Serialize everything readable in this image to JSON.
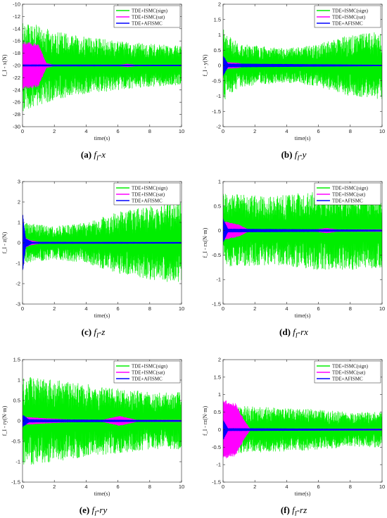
{
  "legend": {
    "entries": [
      "TDE+ISMC(sign)",
      "TDE+ISMC(sat)",
      "TDE+AFISMC"
    ],
    "colors": [
      "#00ee00",
      "#ff00ff",
      "#0000ff"
    ]
  },
  "chart_data": [
    {
      "type": "line",
      "label": "(a)",
      "caption": "f_I-x",
      "caption_sub": "I",
      "caption_pre": "f",
      "caption_post": "-x",
      "ylabel": "f_I - x(N)",
      "xlabel": "time(s)",
      "xlim": [
        0,
        10
      ],
      "ylim": [
        -30,
        -10
      ],
      "xticks": [
        0,
        2,
        4,
        6,
        8,
        10
      ],
      "yticks": [
        -30,
        -28,
        -26,
        -24,
        -22,
        -20,
        -18,
        -16,
        -14,
        -12,
        -10
      ],
      "ytick_labels": [
        "-30",
        "-28",
        "-26",
        "-24",
        "-22",
        "-20",
        "-18",
        "-16",
        "-14",
        "-12",
        "-10"
      ],
      "legend_position": "top-right",
      "series": [
        {
          "name": "TDE+ISMC(sign)",
          "center": -20,
          "envelope": [
            [
              0,
              7.5
            ],
            [
              1,
              6.5
            ],
            [
              3,
              5.0
            ],
            [
              6,
              4.0
            ],
            [
              8,
              3.5
            ],
            [
              10,
              3.2
            ]
          ]
        },
        {
          "name": "TDE+ISMC(sat)",
          "center": -20,
          "envelope": [
            [
              0,
              4.0
            ],
            [
              1.0,
              3.5
            ],
            [
              1.5,
              0.4
            ],
            [
              2.0,
              0.05
            ],
            [
              6.0,
              0.05
            ],
            [
              6.6,
              0.25
            ],
            [
              7.2,
              0.05
            ],
            [
              10,
              0.05
            ]
          ]
        },
        {
          "name": "TDE+AFISMC",
          "center": -20,
          "envelope": [
            [
              0,
              0.1
            ],
            [
              10,
              0.05
            ]
          ]
        }
      ]
    },
    {
      "type": "line",
      "label": "(b)",
      "caption": "f_I-y",
      "caption_sub": "I",
      "caption_pre": "f",
      "caption_post": "-y",
      "ylabel": "f_I - y(N)",
      "xlabel": "time(s)",
      "xlim": [
        0,
        10
      ],
      "ylim": [
        -2,
        2
      ],
      "xticks": [
        0,
        2,
        4,
        6,
        8,
        10
      ],
      "yticks": [
        -2,
        -1.5,
        -1,
        -0.5,
        0,
        0.5,
        1,
        1.5,
        2
      ],
      "ytick_labels": [
        "-2",
        "-1.5",
        "-1",
        "-0.5",
        "0",
        "0.5",
        "1",
        "1.5",
        "2"
      ],
      "legend_position": "top-right",
      "series": [
        {
          "name": "TDE+ISMC(sign)",
          "center": 0,
          "envelope": [
            [
              0,
              1.2
            ],
            [
              1,
              0.7
            ],
            [
              4,
              0.55
            ],
            [
              6,
              0.7
            ],
            [
              8,
              1.0
            ],
            [
              10,
              1.1
            ]
          ]
        },
        {
          "name": "TDE+ISMC(sat)",
          "center": 0,
          "envelope": [
            [
              0,
              0.12
            ],
            [
              1.0,
              0.08
            ],
            [
              1.4,
              0.01
            ],
            [
              10,
              0.01
            ]
          ]
        },
        {
          "name": "TDE+AFISMC",
          "center": 0,
          "envelope": [
            [
              0,
              0.35
            ],
            [
              0.3,
              0.05
            ],
            [
              10,
              0.01
            ]
          ]
        }
      ]
    },
    {
      "type": "line",
      "label": "(c)",
      "caption": "f_I-z",
      "caption_sub": "I",
      "caption_pre": "f",
      "caption_post": "-z",
      "ylabel": "f_I - z(N)",
      "xlabel": "time(s)",
      "xlim": [
        0,
        10
      ],
      "ylim": [
        -3,
        3
      ],
      "xticks": [
        0,
        2,
        4,
        6,
        8,
        10
      ],
      "yticks": [
        -3,
        -2,
        -1,
        0,
        1,
        2,
        3
      ],
      "ytick_labels": [
        "-3",
        "-2",
        "-1",
        "0",
        "1",
        "2",
        "3"
      ],
      "legend_position": "top-right",
      "series": [
        {
          "name": "TDE+ISMC(sign)",
          "center": 0,
          "envelope": [
            [
              0,
              1.0
            ],
            [
              2,
              0.8
            ],
            [
              4,
              1.0
            ],
            [
              6,
              1.5
            ],
            [
              8,
              1.8
            ],
            [
              10,
              2.0
            ]
          ]
        },
        {
          "name": "TDE+ISMC(sat)",
          "center": 0,
          "envelope": [
            [
              0,
              0.3
            ],
            [
              0.5,
              0.12
            ],
            [
              1.2,
              0.02
            ],
            [
              10,
              0.02
            ]
          ]
        },
        {
          "name": "TDE+AFISMC",
          "center": 0,
          "envelope": [
            [
              0,
              1.5
            ],
            [
              0.2,
              0.2
            ],
            [
              0.6,
              0.03
            ],
            [
              10,
              0.02
            ]
          ]
        }
      ]
    },
    {
      "type": "line",
      "label": "(d)",
      "caption": "f_I-rx",
      "caption_sub": "I",
      "caption_pre": "f",
      "caption_post": "-rx",
      "ylabel": "f_I - rx(N·m)",
      "xlabel": "time(s)",
      "xlim": [
        0,
        10
      ],
      "ylim": [
        -1.5,
        1
      ],
      "xticks": [
        0,
        2,
        4,
        6,
        8,
        10
      ],
      "yticks": [
        -1.5,
        -1,
        -0.5,
        0,
        0.5,
        1
      ],
      "ytick_labels": [
        "-1.5",
        "-1",
        "-0.5",
        "0",
        "0.5",
        "1"
      ],
      "legend_position": "top-right",
      "series": [
        {
          "name": "TDE+ISMC(sign)",
          "center": 0,
          "envelope": [
            [
              0,
              0.75
            ],
            [
              3,
              0.7
            ],
            [
              6,
              0.8
            ],
            [
              8,
              0.8
            ],
            [
              10,
              0.75
            ]
          ]
        },
        {
          "name": "TDE+ISMC(sat)",
          "center": 0,
          "envelope": [
            [
              0,
              0.2
            ],
            [
              1.0,
              0.12
            ],
            [
              1.6,
              0.02
            ],
            [
              5.8,
              0.02
            ],
            [
              6.5,
              0.05
            ],
            [
              7.2,
              0.02
            ],
            [
              10,
              0.02
            ]
          ]
        },
        {
          "name": "TDE+AFISMC",
          "center": 0,
          "envelope": [
            [
              0,
              0.25
            ],
            [
              0.3,
              0.03
            ],
            [
              10,
              0.01
            ]
          ]
        }
      ]
    },
    {
      "type": "line",
      "label": "(e)",
      "caption": "f_I-ry",
      "caption_sub": "I",
      "caption_pre": "f",
      "caption_post": "-ry",
      "ylabel": "f_I - ry(N·m)",
      "xlabel": "time(s)",
      "xlim": [
        0,
        10
      ],
      "ylim": [
        -1.5,
        1.5
      ],
      "xticks": [
        0,
        2,
        4,
        6,
        8,
        10
      ],
      "yticks": [
        -1.5,
        -1,
        -0.5,
        0,
        0.5,
        1,
        1.5
      ],
      "ytick_labels": [
        "-1.5",
        "-1",
        "-0.5",
        "0",
        "0.5",
        "1",
        "1.5"
      ],
      "legend_position": "top-right",
      "series": [
        {
          "name": "TDE+ISMC(sign)",
          "center": 0,
          "envelope": [
            [
              0,
              1.1
            ],
            [
              2,
              1.0
            ],
            [
              5,
              0.85
            ],
            [
              8,
              0.7
            ],
            [
              10,
              0.7
            ]
          ]
        },
        {
          "name": "TDE+ISMC(sat)",
          "center": 0,
          "envelope": [
            [
              0,
              0.1
            ],
            [
              1.5,
              0.06
            ],
            [
              3,
              0.03
            ],
            [
              5,
              0.02
            ],
            [
              6.1,
              0.12
            ],
            [
              7.2,
              0.02
            ],
            [
              10,
              0.02
            ]
          ]
        },
        {
          "name": "TDE+AFISMC",
          "center": 0,
          "envelope": [
            [
              0,
              0.15
            ],
            [
              0.4,
              0.03
            ],
            [
              10,
              0.01
            ]
          ]
        }
      ]
    },
    {
      "type": "line",
      "label": "(f)",
      "caption": "f_I-rz",
      "caption_sub": "I",
      "caption_pre": "f",
      "caption_post": "-rz",
      "ylabel": "f_I - rz(N·m)",
      "xlabel": "time(s)",
      "xlim": [
        0,
        10
      ],
      "ylim": [
        -1.5,
        2
      ],
      "xticks": [
        0,
        2,
        4,
        6,
        8,
        10
      ],
      "yticks": [
        -1.5,
        -1,
        -0.5,
        0,
        0.5,
        1,
        1.5,
        2
      ],
      "ytick_labels": [
        "-1.5",
        "-1",
        "-0.5",
        "0",
        "0.5",
        "1",
        "1.5",
        "2"
      ],
      "legend_position": "top-right",
      "series": [
        {
          "name": "TDE+ISMC(sign)",
          "center": 0,
          "envelope": [
            [
              0,
              0.7
            ],
            [
              2,
              0.65
            ],
            [
              5,
              0.6
            ],
            [
              8,
              0.5
            ],
            [
              10,
              0.5
            ]
          ]
        },
        {
          "name": "TDE+ISMC(sat)",
          "center": 0,
          "envelope": [
            [
              0,
              0.85
            ],
            [
              0.8,
              0.75
            ],
            [
              1.3,
              0.3
            ],
            [
              1.7,
              0.02
            ],
            [
              10,
              0.02
            ]
          ]
        },
        {
          "name": "TDE+AFISMC",
          "center": 0,
          "envelope": [
            [
              0,
              0.3
            ],
            [
              0.3,
              0.03
            ],
            [
              10,
              0.01
            ]
          ]
        }
      ]
    }
  ]
}
